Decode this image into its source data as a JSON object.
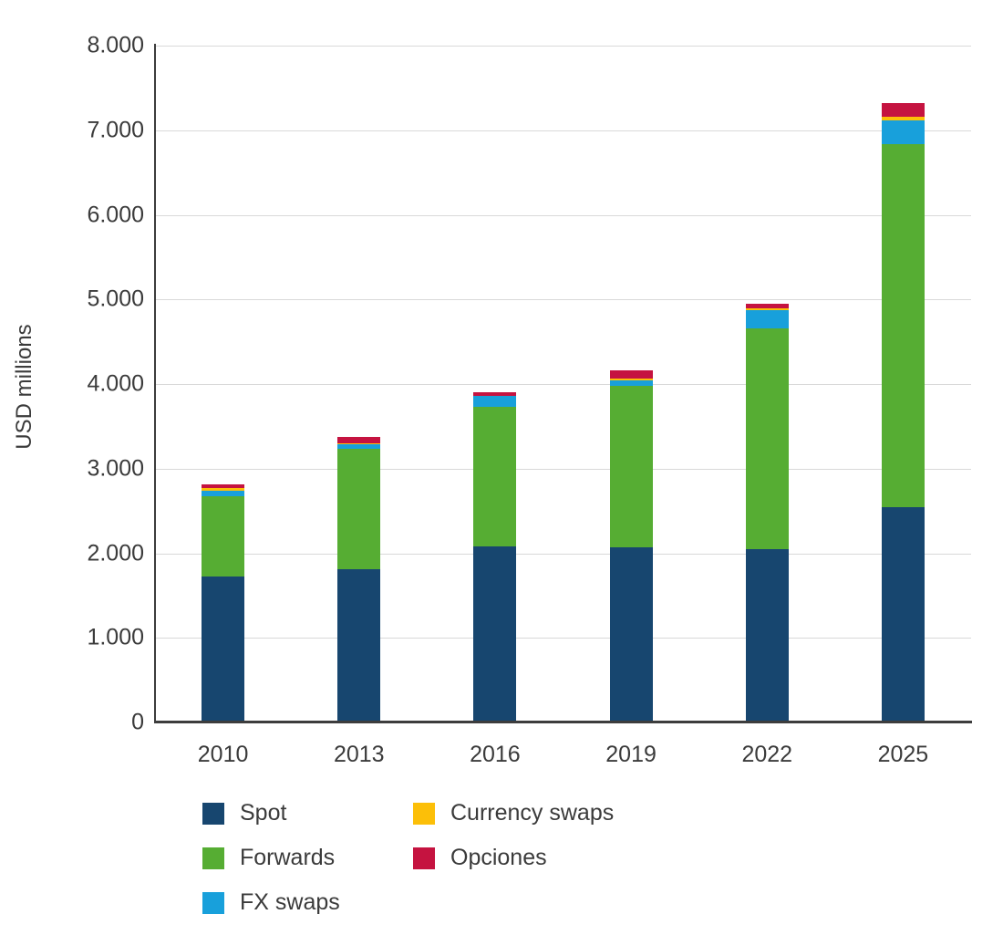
{
  "chart_data": {
    "type": "bar",
    "stacked": true,
    "ylabel": "USD millions",
    "ylim": [
      0,
      8000
    ],
    "ytick_interval": 1000,
    "ytick_labels": [
      "0",
      "1.000",
      "2.000",
      "3.000",
      "4.000",
      "5.000",
      "6.000",
      "7.000",
      "8.000"
    ],
    "categories": [
      "2010",
      "2013",
      "2016",
      "2019",
      "2022",
      "2025"
    ],
    "series": [
      {
        "name": "Spot",
        "color": "#17466F",
        "values": [
          1730,
          1810,
          2080,
          2070,
          2050,
          2550
        ]
      },
      {
        "name": "Forwards",
        "color": "#56AD33",
        "values": [
          945,
          1420,
          1650,
          1905,
          2610,
          4285
        ]
      },
      {
        "name": "FX swaps",
        "color": "#18A0DB",
        "values": [
          60,
          60,
          130,
          65,
          210,
          280
        ]
      },
      {
        "name": "Currency swaps",
        "color": "#FCBF08",
        "values": [
          35,
          5,
          5,
          30,
          30,
          45
        ]
      },
      {
        "name": "Opciones",
        "color": "#C51340",
        "values": [
          45,
          75,
          35,
          95,
          50,
          160
        ]
      }
    ],
    "totals": [
      2815,
      3370,
      3900,
      4165,
      4950,
      7320
    ],
    "grid": "horizontal",
    "legend_position": "bottom"
  },
  "legend_layout": {
    "columns": [
      [
        0,
        1,
        2
      ],
      [
        3,
        4
      ]
    ]
  }
}
